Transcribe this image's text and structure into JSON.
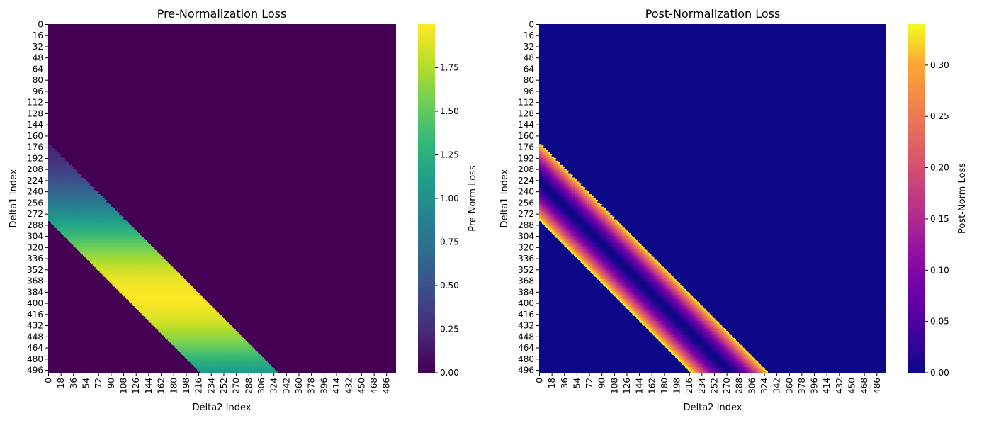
{
  "chart_data": [
    {
      "type": "heatmap",
      "title": "Pre-Normalization Loss",
      "xlabel": "Delta2 Index",
      "ylabel": "Delta1 Index",
      "colorbar_label": "Pre-Norm Loss",
      "colormap": "viridis",
      "n_rows": 500,
      "n_cols": 500,
      "value_range": [
        0,
        2.0
      ],
      "x_tick_labels": [
        "0",
        "18",
        "36",
        "54",
        "72",
        "90",
        "108",
        "126",
        "144",
        "162",
        "180",
        "198",
        "216",
        "234",
        "252",
        "270",
        "288",
        "306",
        "324",
        "342",
        "360",
        "378",
        "396",
        "414",
        "432",
        "450",
        "468",
        "486"
      ],
      "y_tick_labels": [
        "0",
        "16",
        "32",
        "48",
        "64",
        "80",
        "96",
        "112",
        "128",
        "144",
        "160",
        "176",
        "192",
        "208",
        "224",
        "240",
        "256",
        "272",
        "288",
        "304",
        "320",
        "336",
        "352",
        "368",
        "384",
        "400",
        "416",
        "432",
        "448",
        "464",
        "480",
        "496"
      ],
      "colorbar_ticks": [
        "0.00",
        "0.25",
        "0.50",
        "0.75",
        "1.00",
        "1.25",
        "1.50",
        "1.75"
      ],
      "colorbar_tick_values": [
        0,
        0.25,
        0.5,
        0.75,
        1.0,
        1.25,
        1.5,
        1.75
      ],
      "band": {
        "offset": 225,
        "half_width": 55,
        "peak_row": 390,
        "peak_value": 1.99,
        "background": 0.0
      }
    },
    {
      "type": "heatmap",
      "title": "Post-Normalization Loss",
      "xlabel": "Delta2 Index",
      "ylabel": "Delta1 Index",
      "colorbar_label": "Post-Norm Loss",
      "colormap": "plasma",
      "n_rows": 500,
      "n_cols": 500,
      "value_range": [
        0,
        0.34
      ],
      "x_tick_labels": [
        "0",
        "18",
        "36",
        "54",
        "72",
        "90",
        "108",
        "126",
        "144",
        "162",
        "180",
        "198",
        "216",
        "234",
        "252",
        "270",
        "288",
        "306",
        "324",
        "342",
        "360",
        "378",
        "396",
        "414",
        "432",
        "450",
        "468",
        "486"
      ],
      "y_tick_labels": [
        "0",
        "16",
        "32",
        "48",
        "64",
        "80",
        "96",
        "112",
        "128",
        "144",
        "160",
        "176",
        "192",
        "208",
        "224",
        "240",
        "256",
        "272",
        "288",
        "304",
        "320",
        "336",
        "352",
        "368",
        "384",
        "400",
        "416",
        "432",
        "448",
        "464",
        "480",
        "496"
      ],
      "colorbar_ticks": [
        "0.00",
        "0.05",
        "0.10",
        "0.15",
        "0.20",
        "0.25",
        "0.30"
      ],
      "colorbar_tick_values": [
        0,
        0.05,
        0.1,
        0.15,
        0.2,
        0.25,
        0.3
      ],
      "band": {
        "offset": 225,
        "half_width": 55,
        "edge_value": 0.34,
        "center_value": 0.0,
        "background": 0.0
      }
    }
  ]
}
